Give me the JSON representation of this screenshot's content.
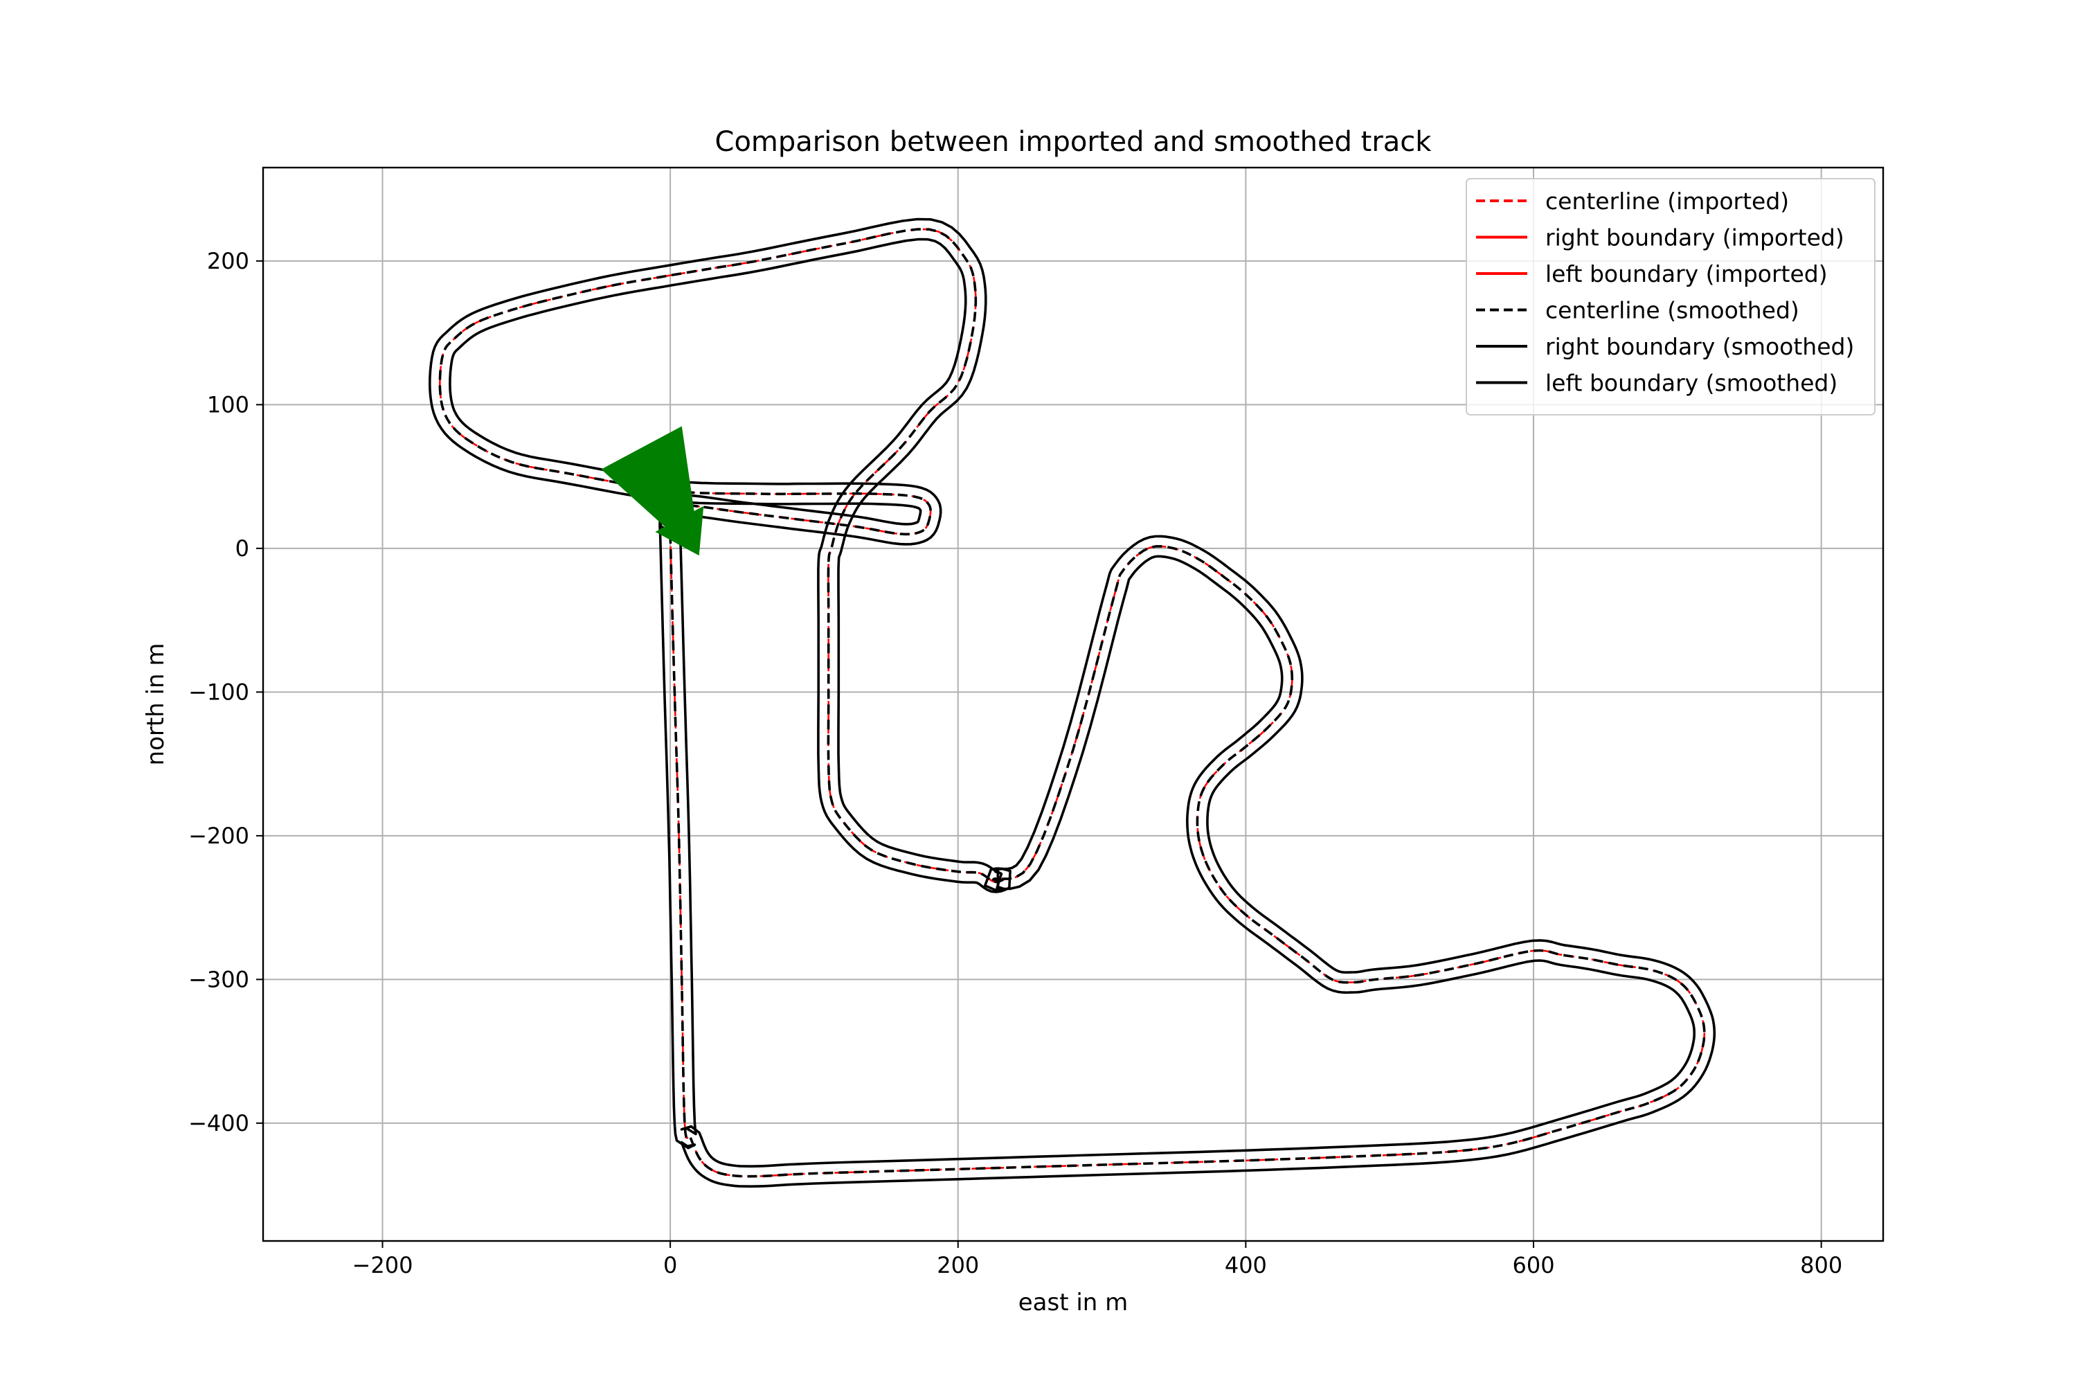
{
  "chart_data": {
    "type": "line",
    "title": "Comparison between imported and smoothed track",
    "xlabel": "east in m",
    "ylabel": "north in m",
    "xlim": [
      -283,
      843
    ],
    "ylim": [
      -482,
      265
    ],
    "xticks": [
      -200,
      0,
      200,
      400,
      600,
      800
    ],
    "yticks": [
      -400,
      -300,
      -200,
      -100,
      0,
      100,
      200
    ],
    "xtick_labels": [
      "−200",
      "0",
      "200",
      "400",
      "600",
      "800"
    ],
    "ytick_labels": [
      "−400",
      "−300",
      "−200",
      "−100",
      "0",
      "100",
      "200"
    ],
    "grid": true,
    "legend_position": "top-right",
    "track_half_width_m": 7,
    "series": [
      {
        "name": "centerline (imported)",
        "color": "#ff0000",
        "style": "dashed",
        "role": "center"
      },
      {
        "name": "right boundary (imported)",
        "color": "#ff0000",
        "style": "solid",
        "role": "right"
      },
      {
        "name": "left boundary (imported)",
        "color": "#ff0000",
        "style": "solid",
        "role": "left"
      },
      {
        "name": "centerline (smoothed)",
        "color": "#000000",
        "style": "dashed",
        "role": "center"
      },
      {
        "name": "right boundary (smoothed)",
        "color": "#000000",
        "style": "solid",
        "role": "right"
      },
      {
        "name": "left boundary (smoothed)",
        "color": "#000000",
        "style": "solid",
        "role": "left"
      }
    ],
    "centerline": {
      "x": [
        0,
        3,
        6,
        8,
        10,
        14,
        20,
        28,
        40,
        60,
        100,
        200,
        300,
        400,
        480,
        540,
        580,
        620,
        660,
        680,
        700,
        712,
        718,
        718,
        712,
        705,
        695,
        680,
        660,
        640,
        620,
        600,
        560,
        520,
        490,
        475,
        460,
        440,
        420,
        400,
        385,
        373,
        367,
        367,
        372,
        385,
        400,
        415,
        428,
        432,
        431,
        425,
        415,
        400,
        385,
        368,
        350,
        332,
        315,
        308,
        280,
        250,
        225,
        232,
        225,
        215,
        200,
        170,
        140,
        120,
        112,
        110,
        110,
        110,
        110,
        112,
        118,
        130,
        160,
        180,
        200,
        210,
        212,
        205,
        180,
        120,
        60,
        30,
        0,
        -40,
        -80,
        -110,
        -135,
        -150,
        -158,
        -160,
        -155,
        -140,
        -110,
        -70,
        0,
        60,
        100,
        140,
        170,
        180,
        180,
        175,
        160,
        130,
        90,
        50,
        10,
        4,
        0,
        0
      ],
      "y": [
        10,
        -100,
        -200,
        -300,
        -400,
        -410,
        -424,
        -432,
        -436,
        -437,
        -435,
        -432,
        -429,
        -426,
        -423,
        -420,
        -415,
        -404,
        -392,
        -386,
        -376,
        -362,
        -345,
        -330,
        -315,
        -305,
        -298,
        -293,
        -290,
        -286,
        -283,
        -280,
        -289,
        -297,
        -300,
        -302,
        -300,
        -285,
        -270,
        -255,
        -240,
        -220,
        -200,
        -180,
        -165,
        -150,
        -138,
        -125,
        -110,
        -95,
        -80,
        -65,
        -48,
        -32,
        -20,
        -8,
        0,
        0,
        -15,
        -35,
        -140,
        -220,
        -230,
        -230,
        -232,
        -226,
        -225,
        -220,
        -210,
        -190,
        -175,
        -150,
        -100,
        -50,
        -10,
        0,
        20,
        40,
        70,
        95,
        115,
        150,
        180,
        202,
        222,
        212,
        200,
        195,
        190,
        183,
        174,
        166,
        157,
        146,
        135,
        110,
        90,
        75,
        60,
        52,
        40,
        38,
        38,
        38,
        36,
        30,
        20,
        12,
        10,
        15,
        20,
        25,
        30,
        25,
        20,
        10
      ]
    },
    "arrow": {
      "x": -20,
      "y": 70,
      "dx": 40,
      "dy": -75,
      "color": "#007f00"
    }
  }
}
